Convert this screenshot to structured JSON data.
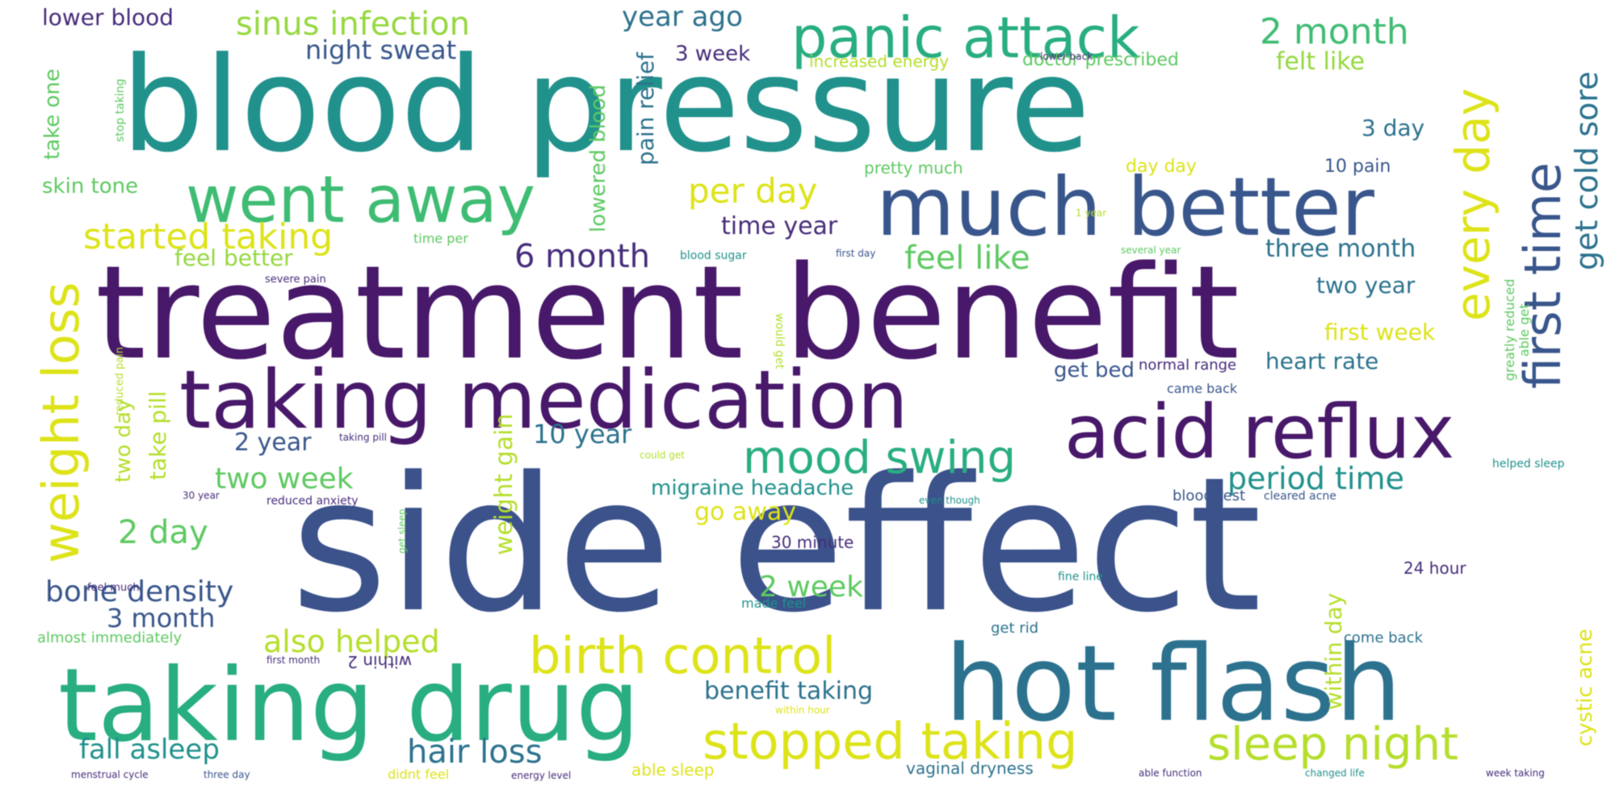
{
  "palette": {
    "deep_purple": "#48186a",
    "purple": "#472d7b",
    "indigo": "#3b528b",
    "slate_blue": "#39568c",
    "teal_blue": "#2c728e",
    "teal": "#21918c",
    "sea_green": "#28ae80",
    "green": "#3fbc73",
    "lime": "#5ec962",
    "light_green": "#95d840",
    "yellow_green": "#b5de2b",
    "yellow": "#dde318"
  },
  "words": [
    {
      "text": "blood pressure",
      "color": "#21918c"
    },
    {
      "text": "side effect",
      "color": "#3b528b"
    },
    {
      "text": "treatment benefit",
      "color": "#48186a"
    },
    {
      "text": "taking medication",
      "color": "#48186a"
    },
    {
      "text": "much better",
      "color": "#39568c"
    },
    {
      "text": "went away",
      "color": "#3fbc73"
    },
    {
      "text": "panic attack",
      "color": "#28ae80"
    },
    {
      "text": "acid reflux",
      "color": "#48186a"
    },
    {
      "text": "hot flash",
      "color": "#2c728e"
    },
    {
      "text": "taking drug",
      "color": "#28ae80"
    },
    {
      "text": "birth control",
      "color": "#dde318"
    },
    {
      "text": "stopped taking",
      "color": "#dde318"
    },
    {
      "text": "sleep night",
      "color": "#b5de2b"
    },
    {
      "text": "mood swing",
      "color": "#28ae80"
    },
    {
      "text": "weight loss",
      "color": "#dde318"
    },
    {
      "text": "first time",
      "color": "#39568c"
    },
    {
      "text": "every day",
      "color": "#dde318"
    },
    {
      "text": "get cold sore",
      "color": "#2c728e"
    },
    {
      "text": "sinus infection",
      "color": "#95d840"
    },
    {
      "text": "2 month",
      "color": "#3fbc73"
    },
    {
      "text": "year ago",
      "color": "#2c728e"
    },
    {
      "text": "night sweat",
      "color": "#39568c"
    },
    {
      "text": "lower blood",
      "color": "#472d7b"
    },
    {
      "text": "3 week",
      "color": "#472d7b"
    },
    {
      "text": "increased energy",
      "color": "#b5de2b"
    },
    {
      "text": "doctor prescribed",
      "color": "#5ec962"
    },
    {
      "text": "felt like",
      "color": "#95d840"
    },
    {
      "text": "3 day",
      "color": "#2c728e"
    },
    {
      "text": "per day",
      "color": "#dde318"
    },
    {
      "text": "started taking",
      "color": "#dde318"
    },
    {
      "text": "skin tone",
      "color": "#5ec962"
    },
    {
      "text": "6 month",
      "color": "#472d7b"
    },
    {
      "text": "feel like",
      "color": "#5ec962"
    },
    {
      "text": "feel better",
      "color": "#95d840"
    },
    {
      "text": "time year",
      "color": "#472d7b"
    },
    {
      "text": "three month",
      "color": "#2c728e"
    },
    {
      "text": "two year",
      "color": "#2c728e"
    },
    {
      "text": "first week",
      "color": "#dde318"
    },
    {
      "text": "heart rate",
      "color": "#2c728e"
    },
    {
      "text": "get bed",
      "color": "#39568c"
    },
    {
      "text": "normal range",
      "color": "#472d7b"
    },
    {
      "text": "came back",
      "color": "#39568c"
    },
    {
      "text": "2 year",
      "color": "#39568c"
    },
    {
      "text": "10 year",
      "color": "#2c728e"
    },
    {
      "text": "two week",
      "color": "#5ec962"
    },
    {
      "text": "migraine headache",
      "color": "#21918c"
    },
    {
      "text": "period time",
      "color": "#21918c"
    },
    {
      "text": "go away",
      "color": "#dde318"
    },
    {
      "text": "2 day",
      "color": "#5ec962"
    },
    {
      "text": "bone density",
      "color": "#39568c"
    },
    {
      "text": "3 month",
      "color": "#39568c"
    },
    {
      "text": "2 week",
      "color": "#5ec962"
    },
    {
      "text": "also helped",
      "color": "#b5de2b"
    },
    {
      "text": "benefit taking",
      "color": "#2c728e"
    },
    {
      "text": "fall asleep",
      "color": "#21918c"
    },
    {
      "text": "hair loss",
      "color": "#2c728e"
    },
    {
      "text": "cystic acne",
      "color": "#dde318"
    },
    {
      "text": "within day",
      "color": "#b5de2b"
    },
    {
      "text": "weight gain",
      "color": "#b5de2b"
    },
    {
      "text": "take pill",
      "color": "#b5de2b"
    },
    {
      "text": "two day",
      "color": "#b5de2b"
    },
    {
      "text": "take one",
      "color": "#5ec962"
    },
    {
      "text": "lowered blood",
      "color": "#5ec962"
    },
    {
      "text": "pain relief",
      "color": "#2c728e"
    },
    {
      "text": "blood sugar",
      "color": "#21918c"
    },
    {
      "text": "time per",
      "color": "#5ec962"
    },
    {
      "text": "severe pain",
      "color": "#472d7b"
    },
    {
      "text": "pretty much",
      "color": "#5ec962"
    },
    {
      "text": "day day",
      "color": "#dde318"
    },
    {
      "text": "10 pain",
      "color": "#39568c"
    },
    {
      "text": "1 year",
      "color": "#b5de2b"
    },
    {
      "text": "first day",
      "color": "#39568c"
    },
    {
      "text": "several year",
      "color": "#5ec962"
    },
    {
      "text": "greatly reduced",
      "color": "#5ec962"
    },
    {
      "text": "able get",
      "color": "#5ec962"
    },
    {
      "text": "lower back",
      "color": "#472d7b"
    },
    {
      "text": "stop taking",
      "color": "#5ec962"
    },
    {
      "text": "taking pill",
      "color": "#472d7b"
    },
    {
      "text": "could get",
      "color": "#b5de2b"
    },
    {
      "text": "30 year",
      "color": "#472d7b"
    },
    {
      "text": "reduced anxiety",
      "color": "#472d7b"
    },
    {
      "text": "even though",
      "color": "#21918c"
    },
    {
      "text": "blood test",
      "color": "#39568c"
    },
    {
      "text": "cleared acne",
      "color": "#39568c"
    },
    {
      "text": "helped sleep",
      "color": "#21918c"
    },
    {
      "text": "30 minute",
      "color": "#472d7b"
    },
    {
      "text": "24 hour",
      "color": "#472d7b"
    },
    {
      "text": "feel much",
      "color": "#472d7b"
    },
    {
      "text": "get sleep",
      "color": "#5ec962"
    },
    {
      "text": "made feel",
      "color": "#21918c"
    },
    {
      "text": "fine line",
      "color": "#21918c"
    },
    {
      "text": "get rid",
      "color": "#2c728e"
    },
    {
      "text": "come back",
      "color": "#2c728e"
    },
    {
      "text": "almost immediately",
      "color": "#5ec962"
    },
    {
      "text": "first month",
      "color": "#472d7b"
    },
    {
      "text": "within 2",
      "color": "#472d7b"
    },
    {
      "text": "within hour",
      "color": "#dde318"
    },
    {
      "text": "menstrual cycle",
      "color": "#472d7b"
    },
    {
      "text": "three day",
      "color": "#39568c"
    },
    {
      "text": "didnt feel",
      "color": "#dde318"
    },
    {
      "text": "energy level",
      "color": "#472d7b"
    },
    {
      "text": "able sleep",
      "color": "#dde318"
    },
    {
      "text": "vaginal dryness",
      "color": "#2c728e"
    },
    {
      "text": "able function",
      "color": "#472d7b"
    },
    {
      "text": "changed life",
      "color": "#21918c"
    },
    {
      "text": "week taking",
      "color": "#472d7b"
    },
    {
      "text": "would get",
      "color": "#b5de2b"
    },
    {
      "text": "reduced pain",
      "color": "#b5de2b"
    }
  ]
}
